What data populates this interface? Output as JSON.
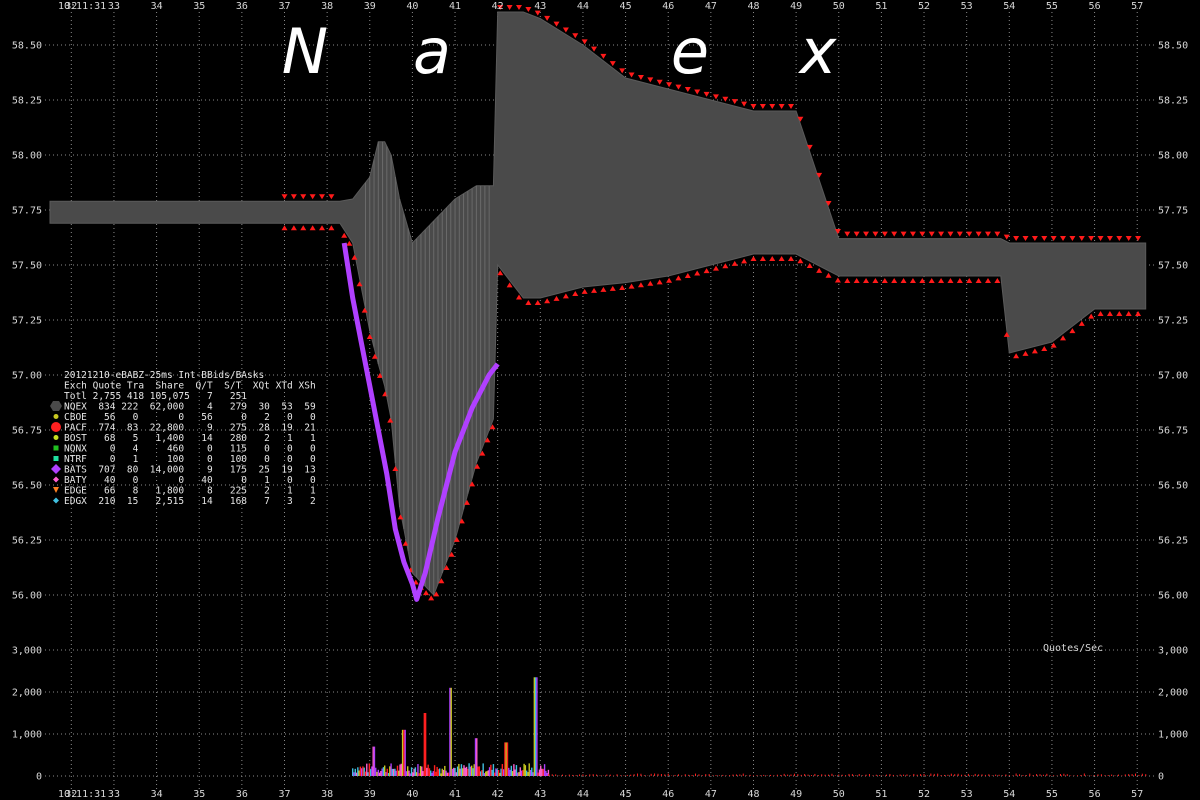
{
  "watermark": [
    "N",
    "a",
    "e",
    "x"
  ],
  "timestamp": "10:11:31",
  "quotes_label": "Quotes/Sec",
  "legend": {
    "title": "20121210-eBABZ-25ms Int-BBids/BAsks",
    "header": "Exch Quote Tra  Share  Q/T  S/T  XQt XTd XSh",
    "rows": [
      {
        "text": "Totl 2,755 418 105,075   7   251",
        "marker": "none",
        "color": ""
      },
      {
        "text": "NQEX  834 222  62,000    4   279  30  53  59",
        "marker": "hexagon",
        "color": "#4a4a4a"
      },
      {
        "text": "CBOE   56   0       0   56     0   2   0   0",
        "marker": "circle",
        "color": "#c8c820"
      },
      {
        "text": "PACF  774  83  22,800    9   275  28  19  21",
        "marker": "circle",
        "color": "#ff2020"
      },
      {
        "text": "BOST   68   5   1,400   14   280   2   1   1",
        "marker": "circle",
        "color": "#c8e020"
      },
      {
        "text": "NQNX    0   4     460    0   115   0   0   0",
        "marker": "square",
        "color": "#20c020"
      },
      {
        "text": "NTRF    0   1     100    0   100   0   0   0",
        "marker": "square",
        "color": "#20e0a0"
      },
      {
        "text": "BATS  707  80  14,000    9   175  25  19  13",
        "marker": "diamond",
        "color": "#b040ff"
      },
      {
        "text": "BATY   40   0       0   40     0   1   0   0",
        "marker": "diamond",
        "color": "#ff60d0"
      },
      {
        "text": "EDGE   66   8   1,800    8   225   2   1   1",
        "marker": "tri",
        "color": "#ff8020"
      },
      {
        "text": "EDGX  210  15   2,515   14   168   7   3   2",
        "marker": "diamond",
        "color": "#40c0e0"
      }
    ]
  },
  "chart_data": {
    "type": "line",
    "title": "",
    "x_ticks": [
      "32",
      "33",
      "34",
      "35",
      "36",
      "37",
      "38",
      "39",
      "40",
      "41",
      "42",
      "43",
      "44",
      "45",
      "46",
      "47",
      "48",
      "49",
      "50",
      "51",
      "52",
      "53",
      "54",
      "55",
      "56",
      "57"
    ],
    "price_ticks": [
      "58.50",
      "58.25",
      "58.00",
      "57.75",
      "57.50",
      "57.25",
      "57.00",
      "56.75",
      "56.50",
      "56.25",
      "56.00"
    ],
    "ylim_price": [
      55.9,
      58.6
    ],
    "volume_ticks": [
      "3,000",
      "2,000",
      "1,000",
      "0"
    ],
    "ylim_volume": [
      0,
      3000
    ],
    "grid": true,
    "series": [
      {
        "name": "NQEX",
        "color": "#4a4a4a",
        "x": [
          31.5,
          37.9,
          38.3,
          38.6,
          38.8,
          39.0,
          39.2,
          39.35,
          39.5,
          39.7,
          40.0,
          40.5,
          41.0,
          41.5,
          41.9,
          42.0,
          42.6,
          43.0,
          44.0,
          45.0,
          46.0,
          47.0,
          48.0,
          49.0,
          50.0,
          52.0,
          53.8,
          54.0,
          55.0,
          56.0,
          57.2
        ],
        "bid": [
          57.69,
          57.69,
          57.69,
          57.6,
          57.4,
          57.2,
          57.05,
          56.95,
          56.8,
          56.4,
          56.1,
          56.0,
          56.25,
          56.6,
          56.8,
          57.5,
          57.35,
          57.35,
          57.4,
          57.42,
          57.45,
          57.5,
          57.55,
          57.55,
          57.45,
          57.45,
          57.45,
          57.1,
          57.15,
          57.3,
          57.3
        ],
        "ask": [
          57.79,
          57.79,
          57.79,
          57.8,
          57.85,
          57.9,
          58.06,
          58.06,
          58.0,
          57.8,
          57.6,
          57.7,
          57.8,
          57.86,
          57.86,
          58.65,
          58.65,
          58.62,
          58.5,
          58.35,
          58.3,
          58.25,
          58.2,
          58.2,
          57.62,
          57.62,
          57.62,
          57.6,
          57.6,
          57.6,
          57.6
        ]
      },
      {
        "name": "BATS",
        "color": "#b040ff",
        "x": [
          38.4,
          38.6,
          38.8,
          39.0,
          39.2,
          39.4,
          39.6,
          39.8,
          40.0,
          40.1,
          40.3,
          40.6,
          41.0,
          41.4,
          41.8,
          42.0
        ],
        "values": [
          57.6,
          57.35,
          57.15,
          56.95,
          56.75,
          56.55,
          56.3,
          56.15,
          56.05,
          55.98,
          56.1,
          56.35,
          56.65,
          56.85,
          57.0,
          57.05
        ]
      }
    ],
    "volume": {
      "x_start": 38.6,
      "x_end": 43.2,
      "peaks": [
        [
          39.1,
          700
        ],
        [
          39.8,
          1100
        ],
        [
          40.3,
          1500
        ],
        [
          40.9,
          2100
        ],
        [
          41.5,
          900
        ],
        [
          42.2,
          800
        ],
        [
          42.9,
          2350
        ]
      ]
    }
  }
}
